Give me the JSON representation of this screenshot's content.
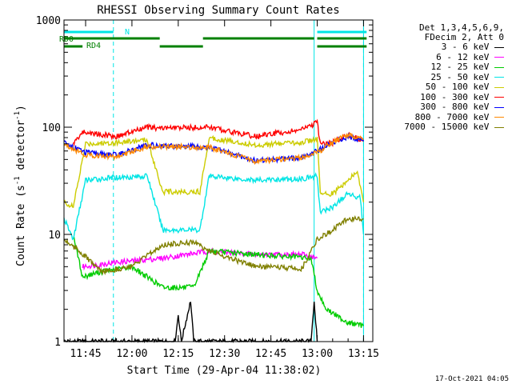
{
  "chart_data": {
    "type": "line",
    "title": "RHESSI Observing Summary Count Rates",
    "xlabel": "Start Time (29-Apr-04 11:38:02)",
    "ylabel_main": "Count Rate (s",
    "ylabel_sup1": "-1",
    "ylabel_mid": " detector",
    "ylabel_sup2": "-1",
    "ylabel_end": ")",
    "yscale": "log",
    "ylim": [
      1,
      1000
    ],
    "xlim": [
      "11:38",
      "13:18"
    ],
    "x_ticks": [
      "11:45",
      "12:00",
      "12:15",
      "12:30",
      "12:45",
      "13:00",
      "13:15"
    ],
    "y_ticks": [
      "1",
      "10",
      "100",
      "1000"
    ],
    "legend_header": [
      "Det 1,3,4,5,6,9,",
      "FDecim 2, Att 0"
    ],
    "series": [
      {
        "name": "3 - 6 keV",
        "color": "#000000",
        "points": [
          [
            "11:38",
            1
          ],
          [
            "12:14",
            1
          ],
          [
            "12:15",
            1.8
          ],
          [
            "12:16",
            1
          ],
          [
            "12:19",
            2.4
          ],
          [
            "12:20",
            1
          ],
          [
            "12:58",
            1
          ],
          [
            "12:59",
            2.4
          ],
          [
            "13:00",
            1
          ]
        ]
      },
      {
        "name": "6 - 12 keV",
        "color": "#ff00ff",
        "points": [
          [
            "11:44",
            5
          ],
          [
            "11:55",
            5.5
          ],
          [
            "12:10",
            6
          ],
          [
            "12:25",
            7
          ],
          [
            "12:40",
            6.5
          ],
          [
            "12:55",
            6.5
          ],
          [
            "13:00",
            6
          ]
        ]
      },
      {
        "name": "12 - 25 keV",
        "color": "#00cc00",
        "points": [
          [
            "11:41",
            10
          ],
          [
            "11:44",
            4
          ],
          [
            "11:50",
            4.5
          ],
          [
            "12:00",
            5
          ],
          [
            "12:10",
            3.2
          ],
          [
            "12:20",
            3.2
          ],
          [
            "12:25",
            7
          ],
          [
            "12:40",
            6.5
          ],
          [
            "12:58",
            6
          ],
          [
            "13:00",
            3
          ],
          [
            "13:03",
            2
          ],
          [
            "13:10",
            1.5
          ],
          [
            "13:15",
            1.4
          ]
        ]
      },
      {
        "name": "25 - 50 keV",
        "color": "#00e5e5",
        "points": [
          [
            "11:38",
            14
          ],
          [
            "11:41",
            9
          ],
          [
            "11:45",
            32
          ],
          [
            "11:55",
            34
          ],
          [
            "12:05",
            35
          ],
          [
            "12:10",
            11
          ],
          [
            "12:22",
            11
          ],
          [
            "12:25",
            35
          ],
          [
            "12:40",
            32
          ],
          [
            "12:55",
            33
          ],
          [
            "13:00",
            35
          ],
          [
            "13:01",
            16
          ],
          [
            "13:05",
            18
          ],
          [
            "13:10",
            24
          ],
          [
            "13:14",
            22
          ],
          [
            "13:15",
            10
          ]
        ]
      },
      {
        "name": "50 - 100 keV",
        "color": "#cccc00",
        "points": [
          [
            "11:38",
            20
          ],
          [
            "11:41",
            18
          ],
          [
            "11:45",
            70
          ],
          [
            "11:55",
            72
          ],
          [
            "12:05",
            76
          ],
          [
            "12:10",
            25
          ],
          [
            "12:22",
            25
          ],
          [
            "12:25",
            80
          ],
          [
            "12:40",
            68
          ],
          [
            "12:55",
            72
          ],
          [
            "13:00",
            78
          ],
          [
            "13:01",
            24
          ],
          [
            "13:05",
            24
          ],
          [
            "13:10",
            32
          ],
          [
            "13:13",
            38
          ],
          [
            "13:15",
            20
          ]
        ]
      },
      {
        "name": "100 - 300 keV",
        "color": "#ff0000",
        "points": [
          [
            "11:41",
            70
          ],
          [
            "11:44",
            90
          ],
          [
            "11:55",
            82
          ],
          [
            "12:05",
            100
          ],
          [
            "12:08",
            98
          ],
          [
            "12:25",
            100
          ],
          [
            "12:40",
            82
          ],
          [
            "12:55",
            95
          ],
          [
            "13:00",
            110
          ],
          [
            "13:01",
            70
          ],
          [
            "13:05",
            72
          ],
          [
            "13:10",
            85
          ],
          [
            "13:15",
            75
          ]
        ]
      },
      {
        "name": "300 - 800 keV",
        "color": "#0000ff",
        "points": [
          [
            "11:38",
            72
          ],
          [
            "11:45",
            58
          ],
          [
            "11:55",
            55
          ],
          [
            "12:05",
            68
          ],
          [
            "12:25",
            65
          ],
          [
            "12:40",
            49
          ],
          [
            "12:55",
            52
          ],
          [
            "13:00",
            60
          ],
          [
            "13:05",
            72
          ],
          [
            "13:10",
            82
          ],
          [
            "13:15",
            74
          ]
        ]
      },
      {
        "name": "800 - 7000 keV",
        "color": "#ff8800",
        "points": [
          [
            "11:38",
            70
          ],
          [
            "11:45",
            55
          ],
          [
            "11:55",
            53
          ],
          [
            "12:05",
            66
          ],
          [
            "12:25",
            65
          ],
          [
            "12:40",
            48
          ],
          [
            "12:55",
            52
          ],
          [
            "13:00",
            58
          ],
          [
            "13:05",
            72
          ],
          [
            "13:10",
            85
          ],
          [
            "13:15",
            78
          ]
        ]
      },
      {
        "name": "7000 - 15000 keV",
        "color": "#808000",
        "points": [
          [
            "11:38",
            9
          ],
          [
            "11:43",
            7
          ],
          [
            "11:50",
            4.5
          ],
          [
            "12:00",
            5
          ],
          [
            "12:10",
            8
          ],
          [
            "12:20",
            8.5
          ],
          [
            "12:25",
            7
          ],
          [
            "12:40",
            5
          ],
          [
            "12:55",
            4.8
          ],
          [
            "13:00",
            9
          ],
          [
            "13:05",
            11
          ],
          [
            "13:10",
            14
          ],
          [
            "13:15",
            14
          ]
        ]
      }
    ],
    "vlines_solid": [
      "11:38",
      "12:59",
      "13:15"
    ],
    "vlines_dashed": [
      "11:54",
      "13:15"
    ],
    "bars": {
      "top_label": "N",
      "rd0_label": "RD0",
      "rd4_label": "RD4",
      "cyan_segments": [
        [
          "11:38",
          "11:54"
        ],
        [
          "13:00",
          "13:16"
        ]
      ],
      "green_top_segments": [
        [
          "11:38",
          "12:09"
        ],
        [
          "12:23",
          "12:59"
        ],
        [
          "13:00",
          "13:16"
        ]
      ],
      "green_low_segments": [
        [
          "11:38",
          "11:44"
        ],
        [
          "12:09",
          "12:23"
        ],
        [
          "13:00",
          "13:16"
        ]
      ]
    }
  },
  "footer_date": "17-Oct-2021 04:05"
}
